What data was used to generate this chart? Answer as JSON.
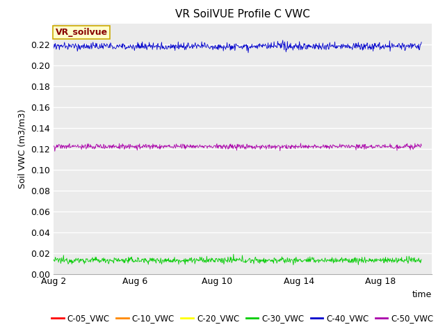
{
  "title": "VR SoilVUE Profile C VWC",
  "ylabel": "Soil VWC (m3/m3)",
  "xlabel": "time",
  "annotation_text": "VR_soilvue",
  "annotation_bg": "#ffffcc",
  "annotation_border": "#ccaa00",
  "annotation_text_color": "#880000",
  "ylim": [
    0.0,
    0.24
  ],
  "yticks": [
    0.0,
    0.02,
    0.04,
    0.06,
    0.08,
    0.1,
    0.12,
    0.14,
    0.16,
    0.18,
    0.2,
    0.22
  ],
  "xtick_labels": [
    "Aug 2",
    "Aug 6",
    "Aug 10",
    "Aug 14",
    "Aug 18"
  ],
  "xtick_positions": [
    0,
    4,
    8,
    12,
    16
  ],
  "xlim": [
    0,
    18.5
  ],
  "bg_color": "#ebebeb",
  "grid_color": "#ffffff",
  "series": [
    {
      "label": "C-05_VWC",
      "color": "#ff0000",
      "mean": null,
      "noise": 0.0,
      "visible": false
    },
    {
      "label": "C-10_VWC",
      "color": "#ff8800",
      "mean": null,
      "noise": 0.0,
      "visible": false
    },
    {
      "label": "C-20_VWC",
      "color": "#ffff00",
      "mean": 0.0,
      "noise": 0.0,
      "visible": true,
      "flat": true
    },
    {
      "label": "C-30_VWC",
      "color": "#00cc00",
      "mean": 0.013,
      "noise": 0.0015,
      "visible": true,
      "flat": false
    },
    {
      "label": "C-40_VWC",
      "color": "#0000cc",
      "mean": 0.218,
      "noise": 0.0018,
      "visible": true,
      "flat": false
    },
    {
      "label": "C-50_VWC",
      "color": "#aa00aa",
      "mean": 0.122,
      "noise": 0.0012,
      "visible": true,
      "flat": false
    }
  ],
  "n_points": 800,
  "legend_colors": [
    "#ff0000",
    "#ff8800",
    "#ffff00",
    "#00cc00",
    "#0000cc",
    "#aa00aa"
  ],
  "legend_labels": [
    "C-05_VWC",
    "C-10_VWC",
    "C-20_VWC",
    "C-30_VWC",
    "C-40_VWC",
    "C-50_VWC"
  ]
}
